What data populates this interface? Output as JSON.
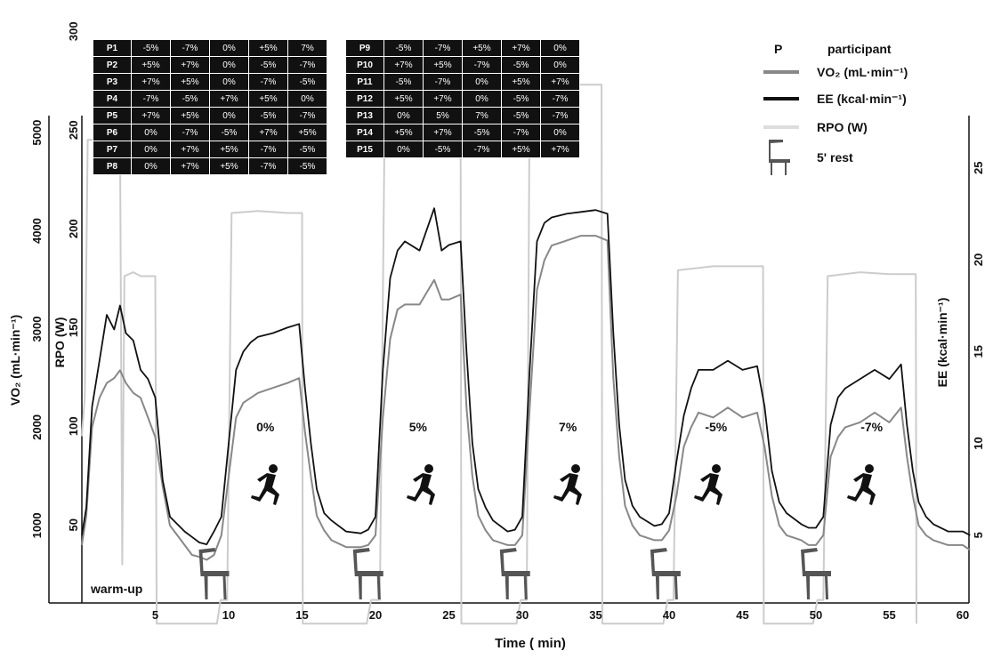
{
  "chart_data": {
    "type": "line",
    "xlabel": "Time ( min)",
    "x_ticks": [
      5,
      10,
      15,
      20,
      25,
      30,
      35,
      40,
      45,
      50,
      55,
      60
    ],
    "xlim": [
      0,
      61
    ],
    "axes": {
      "vo2": {
        "label": "VO₂ (mL·min⁻¹)",
        "ticks": [
          1000,
          2000,
          3000,
          4000,
          5000
        ]
      },
      "rpo": {
        "label": "RPO  (W)",
        "ticks": [
          50,
          100,
          150,
          200,
          250,
          300
        ]
      },
      "ee": {
        "label": "EE (kcal·min⁻¹)",
        "ticks": [
          5,
          10,
          15,
          20,
          25
        ]
      }
    },
    "stage_labels": [
      {
        "label": "warm-up",
        "x": 1
      },
      {
        "label": "0%",
        "x": 12.5
      },
      {
        "label": "5%",
        "x": 22.9
      },
      {
        "label": "7%",
        "x": 33.1
      },
      {
        "label": "-5%",
        "x": 43.2
      },
      {
        "label": "-7%",
        "x": 53.8
      }
    ],
    "rest_periods_min": [
      [
        8,
        10
      ],
      [
        18.5,
        20.5
      ],
      [
        28.5,
        30.5
      ],
      [
        38.5,
        41
      ],
      [
        48.5,
        51.5
      ]
    ],
    "series": [
      {
        "name": "RPO (W)",
        "axis": "rpo",
        "color": "#cccccc",
        "points": [
          [
            0,
            95
          ],
          [
            0.2,
            115
          ],
          [
            0.4,
            245
          ],
          [
            0.8,
            245
          ],
          [
            1.8,
            243
          ],
          [
            2.1,
            242
          ],
          [
            2.6,
            246
          ],
          [
            2.75,
            30
          ],
          [
            2.9,
            176
          ],
          [
            3.5,
            178
          ],
          [
            4,
            176
          ],
          [
            5,
            176
          ],
          [
            5.1,
            0
          ],
          [
            9.2,
            0
          ],
          [
            9.45,
            12
          ],
          [
            9.9,
            12
          ],
          [
            10.2,
            208
          ],
          [
            12,
            209
          ],
          [
            14,
            208
          ],
          [
            15,
            208
          ],
          [
            15.05,
            0
          ],
          [
            19.4,
            0
          ],
          [
            19.7,
            12
          ],
          [
            20.3,
            12
          ],
          [
            20.6,
            237
          ],
          [
            23,
            239
          ],
          [
            24,
            240
          ],
          [
            25,
            240
          ],
          [
            25.8,
            240
          ],
          [
            25.85,
            0
          ],
          [
            29.6,
            0
          ],
          [
            29.9,
            12
          ],
          [
            30.3,
            12
          ],
          [
            30.5,
            272
          ],
          [
            32,
            273
          ],
          [
            34,
            273
          ],
          [
            35.4,
            273
          ],
          [
            35.45,
            0
          ],
          [
            39.6,
            0
          ],
          [
            39.9,
            12
          ],
          [
            40.3,
            12
          ],
          [
            40.6,
            179
          ],
          [
            43,
            181
          ],
          [
            45,
            181
          ],
          [
            46.4,
            181
          ],
          [
            46.45,
            0
          ],
          [
            49.8,
            0
          ],
          [
            50.1,
            12
          ],
          [
            50.5,
            12
          ],
          [
            50.8,
            176
          ],
          [
            53,
            178
          ],
          [
            55,
            177
          ],
          [
            56.8,
            177
          ],
          [
            56.85,
            0
          ]
        ]
      },
      {
        "name": "VO₂ (mL·min⁻¹)",
        "axis": "vo2",
        "color": "#888888",
        "points": [
          [
            0,
            800
          ],
          [
            0.3,
            1100
          ],
          [
            0.7,
            2000
          ],
          [
            1.2,
            2300
          ],
          [
            1.7,
            2450
          ],
          [
            2.2,
            2500
          ],
          [
            2.6,
            2580
          ],
          [
            3,
            2450
          ],
          [
            3.5,
            2350
          ],
          [
            4,
            2300
          ],
          [
            4.5,
            2100
          ],
          [
            5,
            1900
          ],
          [
            5.5,
            1400
          ],
          [
            6,
            1000
          ],
          [
            6.5,
            900
          ],
          [
            7,
            800
          ],
          [
            7.5,
            700
          ],
          [
            8,
            680
          ],
          [
            8.5,
            650
          ],
          [
            9,
            700
          ],
          [
            9.5,
            900
          ],
          [
            10,
            1500
          ],
          [
            10.5,
            2100
          ],
          [
            11,
            2250
          ],
          [
            11.5,
            2300
          ],
          [
            12,
            2350
          ],
          [
            13,
            2400
          ],
          [
            14,
            2450
          ],
          [
            14.8,
            2500
          ],
          [
            15.2,
            1950
          ],
          [
            15.6,
            1500
          ],
          [
            16,
            1100
          ],
          [
            16.5,
            950
          ],
          [
            17,
            850
          ],
          [
            18,
            780
          ],
          [
            19,
            780
          ],
          [
            19.5,
            800
          ],
          [
            20,
            900
          ],
          [
            20.5,
            2100
          ],
          [
            21,
            2900
          ],
          [
            21.5,
            3200
          ],
          [
            22,
            3250
          ],
          [
            23,
            3250
          ],
          [
            24,
            3500
          ],
          [
            24.5,
            3300
          ],
          [
            25,
            3300
          ],
          [
            25.8,
            3350
          ],
          [
            26.2,
            2200
          ],
          [
            26.6,
            1500
          ],
          [
            27,
            1100
          ],
          [
            27.5,
            950
          ],
          [
            28,
            850
          ],
          [
            29,
            800
          ],
          [
            29.5,
            800
          ],
          [
            30,
            900
          ],
          [
            30.5,
            2200
          ],
          [
            31,
            3400
          ],
          [
            31.5,
            3700
          ],
          [
            32,
            3850
          ],
          [
            33,
            3900
          ],
          [
            34,
            3950
          ],
          [
            35,
            3950
          ],
          [
            35.8,
            3900
          ],
          [
            36.2,
            2500
          ],
          [
            36.6,
            1700
          ],
          [
            37,
            1200
          ],
          [
            37.5,
            1000
          ],
          [
            38,
            900
          ],
          [
            39,
            850
          ],
          [
            39.5,
            850
          ],
          [
            40,
            950
          ],
          [
            40.5,
            1300
          ],
          [
            41,
            1800
          ],
          [
            41.5,
            2000
          ],
          [
            42,
            2150
          ],
          [
            43,
            2100
          ],
          [
            44,
            2200
          ],
          [
            45,
            2100
          ],
          [
            46,
            2150
          ],
          [
            46.5,
            1800
          ],
          [
            47,
            1300
          ],
          [
            47.5,
            1000
          ],
          [
            48,
            900
          ],
          [
            49,
            850
          ],
          [
            49.5,
            800
          ],
          [
            50,
            800
          ],
          [
            50.5,
            900
          ],
          [
            51,
            1700
          ],
          [
            51.5,
            1900
          ],
          [
            52,
            2000
          ],
          [
            53,
            2050
          ],
          [
            54,
            2150
          ],
          [
            55,
            2050
          ],
          [
            55.8,
            2200
          ],
          [
            56.2,
            1700
          ],
          [
            56.6,
            1300
          ],
          [
            57,
            1000
          ],
          [
            57.5,
            900
          ],
          [
            58,
            850
          ],
          [
            59,
            800
          ],
          [
            60,
            800
          ],
          [
            60.5,
            750
          ]
        ]
      },
      {
        "name": "EE (kcal·min⁻¹)",
        "axis": "ee",
        "color": "#111111",
        "points": [
          [
            0,
            5
          ],
          [
            0.3,
            6.5
          ],
          [
            0.7,
            12
          ],
          [
            1.2,
            14.5
          ],
          [
            1.7,
            17
          ],
          [
            2.2,
            16.2
          ],
          [
            2.6,
            17.5
          ],
          [
            3,
            16
          ],
          [
            3.5,
            15.6
          ],
          [
            4,
            14
          ],
          [
            4.5,
            13.5
          ],
          [
            5,
            12.5
          ],
          [
            5.5,
            8
          ],
          [
            6,
            6
          ],
          [
            6.5,
            5.6
          ],
          [
            7,
            5.2
          ],
          [
            7.5,
            4.9
          ],
          [
            8,
            4.6
          ],
          [
            8.5,
            4.5
          ],
          [
            9,
            5.2
          ],
          [
            9.5,
            6
          ],
          [
            10,
            10
          ],
          [
            10.5,
            14
          ],
          [
            11,
            15
          ],
          [
            11.5,
            15.5
          ],
          [
            12,
            15.8
          ],
          [
            13,
            16
          ],
          [
            14,
            16.3
          ],
          [
            14.8,
            16.5
          ],
          [
            15.2,
            13
          ],
          [
            15.6,
            10
          ],
          [
            16,
            7.5
          ],
          [
            16.5,
            6.2
          ],
          [
            17,
            5.8
          ],
          [
            18,
            5.2
          ],
          [
            19,
            5.1
          ],
          [
            19.5,
            5.3
          ],
          [
            20,
            6
          ],
          [
            20.5,
            14
          ],
          [
            21,
            19
          ],
          [
            21.5,
            20.5
          ],
          [
            22,
            21
          ],
          [
            23,
            20.5
          ],
          [
            24,
            22.8
          ],
          [
            24.5,
            20.5
          ],
          [
            25,
            20.8
          ],
          [
            25.8,
            21
          ],
          [
            26.2,
            15
          ],
          [
            26.6,
            10
          ],
          [
            27,
            7.5
          ],
          [
            27.5,
            6.5
          ],
          [
            28,
            5.8
          ],
          [
            29,
            5.2
          ],
          [
            29.5,
            5.3
          ],
          [
            30,
            6
          ],
          [
            30.5,
            14
          ],
          [
            31,
            21
          ],
          [
            31.5,
            22
          ],
          [
            32,
            22.3
          ],
          [
            33,
            22.5
          ],
          [
            34,
            22.6
          ],
          [
            35,
            22.7
          ],
          [
            35.8,
            22.5
          ],
          [
            36.2,
            16
          ],
          [
            36.6,
            11
          ],
          [
            37,
            8
          ],
          [
            37.5,
            6.6
          ],
          [
            38,
            6
          ],
          [
            39,
            5.5
          ],
          [
            39.5,
            5.6
          ],
          [
            40,
            6.2
          ],
          [
            40.5,
            9
          ],
          [
            41,
            11.5
          ],
          [
            41.5,
            13
          ],
          [
            42,
            14
          ],
          [
            43,
            14
          ],
          [
            44,
            14.5
          ],
          [
            45,
            14
          ],
          [
            46,
            14.2
          ],
          [
            46.5,
            12
          ],
          [
            47,
            8.5
          ],
          [
            47.5,
            6.8
          ],
          [
            48,
            6.2
          ],
          [
            49,
            5.6
          ],
          [
            49.5,
            5.4
          ],
          [
            50,
            5.4
          ],
          [
            50.5,
            6
          ],
          [
            51,
            11
          ],
          [
            51.5,
            12.5
          ],
          [
            52,
            13
          ],
          [
            53,
            13.5
          ],
          [
            54,
            14
          ],
          [
            55,
            13.5
          ],
          [
            55.8,
            14.3
          ],
          [
            56.2,
            11
          ],
          [
            56.6,
            8.5
          ],
          [
            57,
            6.8
          ],
          [
            57.5,
            6
          ],
          [
            58,
            5.6
          ],
          [
            59,
            5.2
          ],
          [
            60,
            5.2
          ],
          [
            60.5,
            5
          ]
        ]
      }
    ],
    "legend": {
      "placement": "top-right",
      "items": [
        {
          "key": "P",
          "label": "participant"
        },
        {
          "key": "vo2",
          "label": "VO₂ (mL·min⁻¹)",
          "color": "#888888"
        },
        {
          "key": "ee",
          "label": "EE (kcal·min⁻¹)",
          "color": "#111111"
        },
        {
          "key": "rpo",
          "label": "RPO (W)",
          "color": "#dddddd"
        },
        {
          "key": "rest",
          "label": "5' rest",
          "icon": "chair-icon"
        }
      ]
    }
  },
  "participants_table": {
    "left": [
      [
        "P1",
        "-5%",
        "-7%",
        "0%",
        "+5%",
        "7%"
      ],
      [
        "P2",
        "+5%",
        "+7%",
        "0%",
        "-5%",
        "-7%"
      ],
      [
        "P3",
        "+7%",
        "+5%",
        "0%",
        "-7%",
        "-5%"
      ],
      [
        "P4",
        "-7%",
        "-5%",
        "+7%",
        "+5%",
        "0%"
      ],
      [
        "P5",
        "+7%",
        "+5%",
        "0%",
        "-5%",
        "-7%"
      ],
      [
        "P6",
        "0%",
        "-7%",
        "-5%",
        "+7%",
        "+5%"
      ],
      [
        "P7",
        "0%",
        "+7%",
        "+5%",
        "-7%",
        "-5%"
      ],
      [
        "P8",
        "0%",
        "+7%",
        "+5%",
        "-7%",
        "-5%"
      ]
    ],
    "right": [
      [
        "P9",
        "-5%",
        "-7%",
        "+5%",
        "+7%",
        "0%"
      ],
      [
        "P10",
        "+7%",
        "+5%",
        "-7%",
        "-5%",
        "0%"
      ],
      [
        "P11",
        "-5%",
        "-7%",
        "0%",
        "+5%",
        "+7%"
      ],
      [
        "P12",
        "+5%",
        "+7%",
        "0%",
        "-5%",
        "-7%"
      ],
      [
        "P13",
        "0%",
        "5%",
        "7%",
        "-5%",
        "-7%"
      ],
      [
        "P14",
        "+5%",
        "+7%",
        "-5%",
        "-7%",
        "0%"
      ],
      [
        "P15",
        "0%",
        "-5%",
        "-7%",
        "+5%",
        "+7%"
      ]
    ]
  }
}
